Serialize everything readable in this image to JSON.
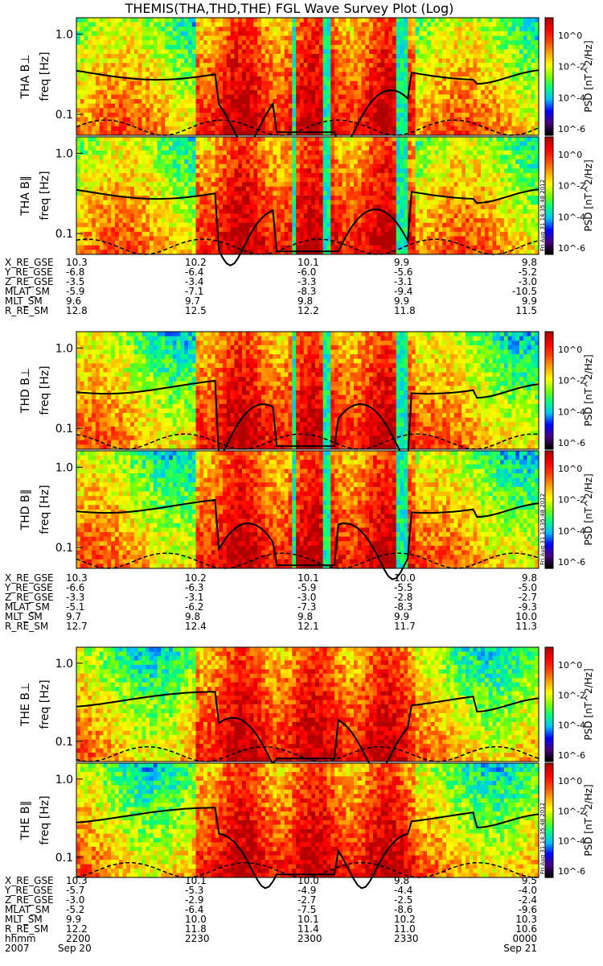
{
  "title": "THEMIS(THA,THD,THE) FGL Wave Survey Plot (Log)",
  "stamp": "Fri Aug 31 14:35:48 2012",
  "chart_data": {
    "type": "heatmap",
    "title": "THEMIS(THA,THD,THE) FGL Wave Survey Plot (Log)",
    "ylabel": "freq [Hz]",
    "colorbar_label": "PSD [nT^2/Hz]",
    "colorbar_ticks": [
      "10^0",
      "10^-2",
      "10^-4",
      "10^-6"
    ],
    "y_ticks": [
      "1.0",
      "0.1"
    ],
    "y_scale": "log",
    "ylim": [
      0.055,
      1.6
    ],
    "colormap": [
      "#000000",
      "#4b0082",
      "#0000ff",
      "#00bfff",
      "#00ff7f",
      "#7fff00",
      "#ffff00",
      "#ffa500",
      "#ff4500",
      "#ff0000",
      "#b00000"
    ],
    "panels": [
      {
        "label": "THA B⊥",
        "group": 0
      },
      {
        "label": "THA B∥",
        "group": 0
      },
      {
        "label": "THD B⊥",
        "group": 1
      },
      {
        "label": "THD B∥",
        "group": 1
      },
      {
        "label": "THE B⊥",
        "group": 2
      },
      {
        "label": "THE B∥",
        "group": 2
      }
    ],
    "ephemeris": [
      {
        "rows": [
          {
            "name": "X_RE_GSE",
            "values": [
              "10.3",
              "10.2",
              "10.1",
              "9.9",
              "9.8"
            ]
          },
          {
            "name": "Y_RE_GSE",
            "values": [
              "-6.8",
              "-6.4",
              "-6.0",
              "-5.6",
              "-5.2"
            ]
          },
          {
            "name": "Z_RE_GSE",
            "values": [
              "-3.5",
              "-3.4",
              "-3.3",
              "-3.1",
              "-3.0"
            ]
          },
          {
            "name": "MLAT_SM",
            "values": [
              "-5.9",
              "-7.1",
              "-8.3",
              "-9.4",
              "-10.5"
            ]
          },
          {
            "name": "MLT_SM",
            "values": [
              "9.6",
              "9.7",
              "9.8",
              "9.9",
              "9.9"
            ]
          },
          {
            "name": "R_RE_SM",
            "values": [
              "12.8",
              "12.5",
              "12.2",
              "11.8",
              "11.5"
            ]
          }
        ]
      },
      {
        "rows": [
          {
            "name": "X_RE_GSE",
            "values": [
              "10.3",
              "10.2",
              "10.1",
              "10.0",
              "9.8"
            ]
          },
          {
            "name": "Y_RE_GSE",
            "values": [
              "-6.6",
              "-6.3",
              "-5.9",
              "-5.5",
              "-5.0"
            ]
          },
          {
            "name": "Z_RE_GSE",
            "values": [
              "-3.3",
              "-3.1",
              "-3.0",
              "-2.8",
              "-2.7"
            ]
          },
          {
            "name": "MLAT_SM",
            "values": [
              "-5.1",
              "-6.2",
              "-7.3",
              "-8.3",
              "-9.3"
            ]
          },
          {
            "name": "MLT_SM",
            "values": [
              "9.7",
              "9.8",
              "9.8",
              "9.9",
              "10.0"
            ]
          },
          {
            "name": "R_RE_SM",
            "values": [
              "12.7",
              "12.4",
              "12.1",
              "11.7",
              "11.3"
            ]
          }
        ]
      },
      {
        "rows": [
          {
            "name": "X_RE_GSE",
            "values": [
              "10.3",
              "10.1",
              "10.0",
              "9.8",
              "9.5"
            ]
          },
          {
            "name": "Y_RE_GSE",
            "values": [
              "-5.7",
              "-5.3",
              "-4.9",
              "-4.4",
              "-4.0"
            ]
          },
          {
            "name": "Z_RE_GSE",
            "values": [
              "-3.0",
              "-2.9",
              "-2.7",
              "-2.5",
              "-2.4"
            ]
          },
          {
            "name": "MLAT_SM",
            "values": [
              "-5.2",
              "-6.4",
              "-7.5",
              "-8.6",
              "-9.6"
            ]
          },
          {
            "name": "MLT_SM",
            "values": [
              "9.9",
              "10.0",
              "10.1",
              "10.2",
              "10.3"
            ]
          },
          {
            "name": "R_RE_SM",
            "values": [
              "12.2",
              "11.8",
              "11.4",
              "11.0",
              "10.6"
            ]
          },
          {
            "name": "hhmm",
            "values": [
              "2200",
              "2230",
              "2300",
              "2330",
              "0000"
            ]
          }
        ]
      }
    ],
    "date_left": "2007",
    "date_left_2": "Sep 20",
    "date_right": "Sep 21"
  }
}
